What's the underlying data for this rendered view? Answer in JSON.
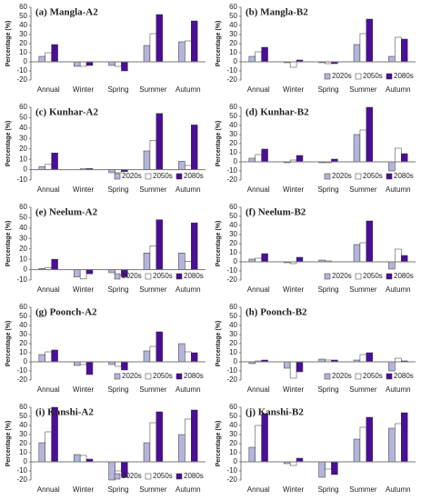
{
  "chart_data": [
    {
      "type": "bar",
      "title": "(a) Mangla-A2",
      "ylabel": "Percentage (%)",
      "categories": [
        "Annual",
        "Winter",
        "Spring",
        "Summer",
        "Autumn"
      ],
      "series": [
        {
          "name": "2020s",
          "color": "#b4b4dc",
          "values": [
            6,
            -5,
            -4,
            18,
            22
          ]
        },
        {
          "name": "2050s",
          "color": "#ffffff",
          "values": [
            10,
            -5,
            -5,
            31,
            23
          ]
        },
        {
          "name": "2080s",
          "color": "#4b0e98",
          "values": [
            19,
            -4,
            -10,
            52,
            45
          ]
        }
      ],
      "ylim": [
        -20,
        60
      ],
      "yticks": [
        -20,
        -10,
        0,
        10,
        20,
        30,
        40,
        50,
        60
      ],
      "legend": false
    },
    {
      "type": "bar",
      "title": "(b) Mangla-B2",
      "ylabel": "Percentage (%)",
      "categories": [
        "Annual",
        "Winter",
        "Spring",
        "Summer",
        "Autumn"
      ],
      "series": [
        {
          "name": "2020s",
          "color": "#b4b4dc",
          "values": [
            6,
            -1,
            -1,
            19,
            6
          ]
        },
        {
          "name": "2050s",
          "color": "#ffffff",
          "values": [
            11,
            -6,
            -2,
            31,
            27
          ]
        },
        {
          "name": "2080s",
          "color": "#4b0e98",
          "values": [
            16,
            2,
            -2,
            47,
            25
          ]
        }
      ],
      "ylim": [
        -20,
        60
      ],
      "yticks": [
        -20,
        -10,
        0,
        10,
        20,
        30,
        40,
        50,
        60
      ],
      "legend": true
    },
    {
      "type": "bar",
      "title": "(c) Kunhar-A2",
      "ylabel": "Percentage (%)",
      "categories": [
        "Annual",
        "Winter",
        "Spring",
        "Summer",
        "Autumn"
      ],
      "series": [
        {
          "name": "2020s",
          "color": "#b4b4dc",
          "values": [
            3,
            0,
            -3,
            18,
            8
          ]
        },
        {
          "name": "2050s",
          "color": "#ffffff",
          "values": [
            5,
            1,
            -3,
            28,
            4
          ]
        },
        {
          "name": "2080s",
          "color": "#4b0e98",
          "values": [
            16,
            1,
            -2,
            54,
            43
          ]
        }
      ],
      "ylim": [
        -10,
        60
      ],
      "yticks": [
        -10,
        0,
        10,
        20,
        30,
        40,
        50,
        60
      ],
      "legend": true
    },
    {
      "type": "bar",
      "title": "(d) Kunhar-B2",
      "ylabel": "Percentage (%)",
      "categories": [
        "Annual",
        "Winter",
        "Spring",
        "Summer",
        "Autumn"
      ],
      "series": [
        {
          "name": "2020s",
          "color": "#b4b4dc",
          "values": [
            4,
            -1,
            -1,
            30,
            -10
          ]
        },
        {
          "name": "2050s",
          "color": "#ffffff",
          "values": [
            8,
            2,
            -1,
            35,
            15
          ]
        },
        {
          "name": "2080s",
          "color": "#4b0e98",
          "values": [
            14,
            7,
            3,
            60,
            9
          ]
        }
      ],
      "ylim": [
        -20,
        60
      ],
      "yticks": [
        -20,
        -10,
        0,
        10,
        20,
        30,
        40,
        50,
        60
      ],
      "legend": true
    },
    {
      "type": "bar",
      "title": "(e) Neelum-A2",
      "ylabel": "Percentage (%)",
      "categories": [
        "Annual",
        "Winter",
        "Spring",
        "Summer",
        "Autumn"
      ],
      "series": [
        {
          "name": "2020s",
          "color": "#b4b4dc",
          "values": [
            1,
            -7,
            -3,
            16,
            16
          ]
        },
        {
          "name": "2050s",
          "color": "#ffffff",
          "values": [
            2,
            -9,
            -5,
            23,
            8
          ]
        },
        {
          "name": "2080s",
          "color": "#4b0e98",
          "values": [
            10,
            -4,
            -7,
            48,
            45
          ]
        }
      ],
      "ylim": [
        -10,
        60
      ],
      "yticks": [
        -10,
        0,
        10,
        20,
        30,
        40,
        50,
        60
      ],
      "legend": true
    },
    {
      "type": "bar",
      "title": "(f) Neelum-B2",
      "ylabel": "Percentage (%)",
      "categories": [
        "Annual",
        "Winter",
        "Spring",
        "Summer",
        "Autumn"
      ],
      "series": [
        {
          "name": "2020s",
          "color": "#b4b4dc",
          "values": [
            3,
            -1,
            2,
            19,
            -8
          ]
        },
        {
          "name": "2050s",
          "color": "#ffffff",
          "values": [
            4,
            -2,
            1,
            21,
            14
          ]
        },
        {
          "name": "2080s",
          "color": "#4b0e98",
          "values": [
            9,
            5,
            0,
            45,
            7
          ]
        }
      ],
      "ylim": [
        -20,
        60
      ],
      "yticks": [
        -20,
        -10,
        0,
        10,
        20,
        30,
        40,
        50,
        60
      ],
      "legend": true
    },
    {
      "type": "bar",
      "title": "(g) Poonch-A2",
      "ylabel": "Percentage (%)",
      "categories": [
        "Annual",
        "Winter",
        "Spring",
        "Summer",
        "Autumn"
      ],
      "series": [
        {
          "name": "2020s",
          "color": "#b4b4dc",
          "values": [
            8,
            -4,
            -3,
            12,
            20
          ]
        },
        {
          "name": "2050s",
          "color": "#ffffff",
          "values": [
            11,
            -3,
            -5,
            17,
            11
          ]
        },
        {
          "name": "2080s",
          "color": "#4b0e98",
          "values": [
            13,
            -14,
            -9,
            33,
            10
          ]
        }
      ],
      "ylim": [
        -20,
        60
      ],
      "yticks": [
        -20,
        -10,
        0,
        10,
        20,
        30,
        40,
        50,
        60
      ],
      "legend": true
    },
    {
      "type": "bar",
      "title": "(h) Poonch-B2",
      "ylabel": "Percentage (%)",
      "categories": [
        "Annual",
        "Winter",
        "Spring",
        "Summer",
        "Autumn"
      ],
      "series": [
        {
          "name": "2020s",
          "color": "#b4b4dc",
          "values": [
            -2,
            -7,
            3,
            2,
            -10
          ]
        },
        {
          "name": "2050s",
          "color": "#ffffff",
          "values": [
            1,
            -18,
            2,
            8,
            4
          ]
        },
        {
          "name": "2080s",
          "color": "#4b0e98",
          "values": [
            2,
            -11,
            2,
            10,
            1
          ]
        }
      ],
      "ylim": [
        -20,
        60
      ],
      "yticks": [
        -20,
        -10,
        0,
        10,
        20,
        30,
        40,
        50,
        60
      ],
      "legend": true
    },
    {
      "type": "bar",
      "title": "(i) Kanshi-A2",
      "ylabel": "Percentage (%)",
      "categories": [
        "Annual",
        "Winter",
        "Spring",
        "Summer",
        "Autumn"
      ],
      "series": [
        {
          "name": "2020s",
          "color": "#b4b4dc",
          "values": [
            21,
            8,
            -20,
            21,
            30
          ]
        },
        {
          "name": "2050s",
          "color": "#ffffff",
          "values": [
            33,
            7,
            -10,
            43,
            47
          ]
        },
        {
          "name": "2080s",
          "color": "#4b0e98",
          "values": [
            60,
            3,
            -17,
            55,
            57
          ]
        }
      ],
      "ylim": [
        -20,
        60
      ],
      "yticks": [
        -20,
        -10,
        0,
        10,
        20,
        30,
        40,
        50,
        60
      ],
      "legend": true
    },
    {
      "type": "bar",
      "title": "(j) Kanshi-B2",
      "ylabel": "Percentage (%)",
      "categories": [
        "Annual",
        "Winter",
        "Spring",
        "Summer",
        "Autumn"
      ],
      "series": [
        {
          "name": "2020s",
          "color": "#b4b4dc",
          "values": [
            16,
            -2,
            -17,
            25,
            37
          ]
        },
        {
          "name": "2050s",
          "color": "#ffffff",
          "values": [
            40,
            -4,
            -8,
            38,
            42
          ]
        },
        {
          "name": "2080s",
          "color": "#4b0e98",
          "values": [
            53,
            4,
            -14,
            49,
            54
          ]
        }
      ],
      "ylim": [
        -20,
        60
      ],
      "yticks": [
        -20,
        -10,
        0,
        10,
        20,
        30,
        40,
        50,
        60
      ],
      "legend": false
    }
  ]
}
